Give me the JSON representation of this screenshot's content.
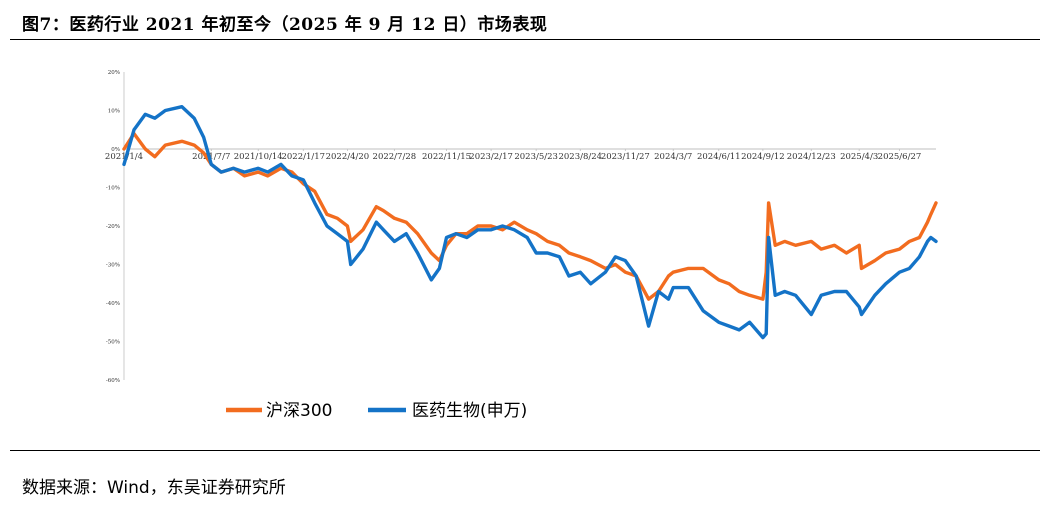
{
  "figure_title": "图7：医药行业 2021 年初至今（2025 年 9 月 12 日）市场表现",
  "source_note": "数据来源：Wind，东吴证券研究所",
  "colors": {
    "hs300": "#F26C1F",
    "pharma": "#1473C7",
    "axis": "#BFBFBF"
  },
  "chart_data": {
    "type": "line",
    "title": "",
    "xlabel": "",
    "ylabel": "",
    "ylim": [
      -0.6,
      0.2
    ],
    "yticks": [
      0.2,
      0.1,
      0.0,
      -0.1,
      -0.2,
      -0.3,
      -0.4,
      -0.5,
      -0.6
    ],
    "ytick_labels": [
      "20%",
      "10%",
      "0%",
      "-10%",
      "-20%",
      "-30%",
      "-40%",
      "-50%",
      "-60%"
    ],
    "x_start": "2021/1/4",
    "x_end": "2025/9/12",
    "xtick_labels": [
      "2021/1/4",
      "2021/7/7",
      "2021/10/14",
      "2022/1/17",
      "2022/4/20",
      "2022/7/28",
      "2022/11/15",
      "2023/2/17",
      "2023/5/23",
      "2023/8/24",
      "2023/11/27",
      "2024/3/7",
      "2024/6/11",
      "2024/9/12",
      "2024/12/23",
      "2025/4/3",
      "2025/6/27"
    ],
    "legend_position": "bottom",
    "series": [
      {
        "name": "沪深300",
        "x": [
          "2021/1/4",
          "2021/1/25",
          "2021/2/18",
          "2021/3/10",
          "2021/4/1",
          "2021/5/6",
          "2021/6/1",
          "2021/6/21",
          "2021/7/7",
          "2021/7/28",
          "2021/8/23",
          "2021/9/15",
          "2021/10/14",
          "2021/11/3",
          "2021/12/1",
          "2021/12/24",
          "2022/1/17",
          "2022/2/10",
          "2022/3/8",
          "2022/3/30",
          "2022/4/20",
          "2022/4/27",
          "2022/5/23",
          "2022/6/20",
          "2022/7/5",
          "2022/7/28",
          "2022/8/22",
          "2022/9/15",
          "2022/10/14",
          "2022/10/31",
          "2022/11/15",
          "2022/12/5",
          "2022/12/28",
          "2023/1/20",
          "2023/2/17",
          "2023/3/13",
          "2023/4/7",
          "2023/5/4",
          "2023/5/23",
          "2023/6/16",
          "2023/7/11",
          "2023/7/31",
          "2023/8/24",
          "2023/9/15",
          "2023/10/16",
          "2023/11/6",
          "2023/11/27",
          "2023/12/20",
          "2024/1/15",
          "2024/2/5",
          "2024/2/26",
          "2024/3/7",
          "2024/4/8",
          "2024/5/9",
          "2024/6/11",
          "2024/7/3",
          "2024/7/24",
          "2024/8/15",
          "2024/9/12",
          "2024/9/19",
          "2024/9/24",
          "2024/10/8",
          "2024/10/28",
          "2024/11/20",
          "2024/12/23",
          "2025/1/13",
          "2025/2/10",
          "2025/3/7",
          "2025/4/3",
          "2025/4/8",
          "2025/5/6",
          "2025/5/29",
          "2025/6/27",
          "2025/7/18",
          "2025/8/8",
          "2025/8/25",
          "2025/9/1",
          "2025/9/12"
        ],
        "values": [
          0.0,
          0.04,
          0.0,
          -0.02,
          0.01,
          0.02,
          0.01,
          -0.01,
          -0.04,
          -0.06,
          -0.05,
          -0.07,
          -0.06,
          -0.07,
          -0.05,
          -0.06,
          -0.09,
          -0.11,
          -0.17,
          -0.18,
          -0.2,
          -0.24,
          -0.21,
          -0.15,
          -0.16,
          -0.18,
          -0.19,
          -0.22,
          -0.27,
          -0.29,
          -0.25,
          -0.22,
          -0.22,
          -0.2,
          -0.2,
          -0.21,
          -0.19,
          -0.21,
          -0.22,
          -0.24,
          -0.25,
          -0.27,
          -0.28,
          -0.29,
          -0.31,
          -0.3,
          -0.32,
          -0.33,
          -0.39,
          -0.37,
          -0.33,
          -0.32,
          -0.31,
          -0.31,
          -0.34,
          -0.35,
          -0.37,
          -0.38,
          -0.39,
          -0.32,
          -0.14,
          -0.25,
          -0.24,
          -0.25,
          -0.24,
          -0.26,
          -0.25,
          -0.27,
          -0.25,
          -0.31,
          -0.29,
          -0.27,
          -0.26,
          -0.24,
          -0.23,
          -0.19,
          -0.17,
          -0.14
        ]
      },
      {
        "name": "医药生物(申万)",
        "x": [
          "2021/1/4",
          "2021/1/25",
          "2021/2/18",
          "2021/3/10",
          "2021/4/1",
          "2021/5/6",
          "2021/6/1",
          "2021/6/21",
          "2021/7/7",
          "2021/7/28",
          "2021/8/23",
          "2021/9/15",
          "2021/10/14",
          "2021/11/3",
          "2021/12/1",
          "2021/12/24",
          "2022/1/17",
          "2022/2/10",
          "2022/3/8",
          "2022/3/30",
          "2022/4/20",
          "2022/4/27",
          "2022/5/23",
          "2022/6/20",
          "2022/7/5",
          "2022/7/28",
          "2022/8/22",
          "2022/9/15",
          "2022/10/14",
          "2022/10/31",
          "2022/11/15",
          "2022/12/5",
          "2022/12/28",
          "2023/1/20",
          "2023/2/17",
          "2023/3/13",
          "2023/4/7",
          "2023/5/4",
          "2023/5/23",
          "2023/6/16",
          "2023/7/11",
          "2023/7/31",
          "2023/8/24",
          "2023/9/15",
          "2023/10/16",
          "2023/11/6",
          "2023/11/27",
          "2023/12/20",
          "2024/1/15",
          "2024/2/5",
          "2024/2/26",
          "2024/3/7",
          "2024/4/8",
          "2024/5/9",
          "2024/6/11",
          "2024/7/3",
          "2024/7/24",
          "2024/8/15",
          "2024/9/12",
          "2024/9/19",
          "2024/9/24",
          "2024/10/8",
          "2024/10/28",
          "2024/11/20",
          "2024/12/23",
          "2025/1/13",
          "2025/2/10",
          "2025/3/7",
          "2025/4/3",
          "2025/4/8",
          "2025/5/6",
          "2025/5/29",
          "2025/6/27",
          "2025/7/18",
          "2025/8/8",
          "2025/8/25",
          "2025/9/1",
          "2025/9/12"
        ],
        "values": [
          -0.04,
          0.05,
          0.09,
          0.08,
          0.1,
          0.11,
          0.08,
          0.03,
          -0.04,
          -0.06,
          -0.05,
          -0.06,
          -0.05,
          -0.06,
          -0.04,
          -0.07,
          -0.08,
          -0.14,
          -0.2,
          -0.22,
          -0.24,
          -0.3,
          -0.26,
          -0.19,
          -0.21,
          -0.24,
          -0.22,
          -0.27,
          -0.34,
          -0.31,
          -0.23,
          -0.22,
          -0.23,
          -0.21,
          -0.21,
          -0.2,
          -0.21,
          -0.23,
          -0.27,
          -0.27,
          -0.28,
          -0.33,
          -0.32,
          -0.35,
          -0.32,
          -0.28,
          -0.29,
          -0.33,
          -0.46,
          -0.37,
          -0.39,
          -0.36,
          -0.36,
          -0.42,
          -0.45,
          -0.46,
          -0.47,
          -0.45,
          -0.49,
          -0.48,
          -0.23,
          -0.38,
          -0.37,
          -0.38,
          -0.43,
          -0.38,
          -0.37,
          -0.37,
          -0.41,
          -0.43,
          -0.38,
          -0.35,
          -0.32,
          -0.31,
          -0.28,
          -0.24,
          -0.23,
          -0.24
        ]
      }
    ]
  }
}
